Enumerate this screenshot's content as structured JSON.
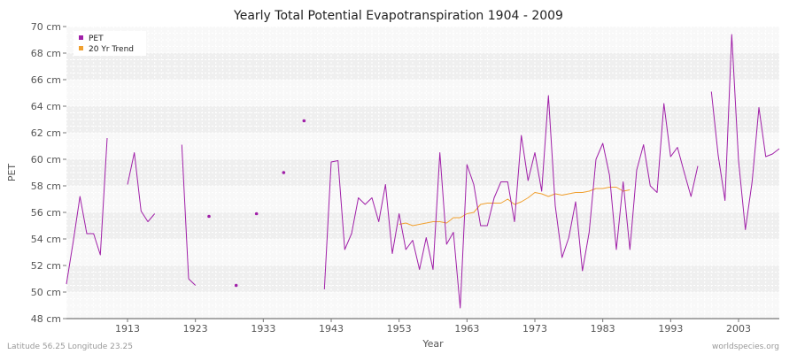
{
  "chart_data": {
    "type": "line",
    "title": "Yearly Total Potential Evapotranspiration 1904 - 2009",
    "xlabel": "Year",
    "ylabel": "PET",
    "xlim": [
      1904,
      2009
    ],
    "ylim": [
      48,
      70
    ],
    "y_unit": "cm",
    "x_ticks": [
      1913,
      1923,
      1933,
      1943,
      1953,
      1963,
      1973,
      1983,
      1993,
      2003
    ],
    "y_ticks": [
      48,
      50,
      52,
      54,
      56,
      58,
      60,
      62,
      64,
      66,
      68,
      70
    ],
    "y_tick_labels": [
      "48 cm",
      "50 cm",
      "52 cm",
      "54 cm",
      "56 cm",
      "58 cm",
      "60 cm",
      "62 cm",
      "64 cm",
      "66 cm",
      "68 cm",
      "70 cm"
    ],
    "grid": true,
    "legend_position": "top-left",
    "series": [
      {
        "name": "PET",
        "color": "#a020a8",
        "points": [
          [
            1904,
            50.6
          ],
          [
            1905,
            53.8
          ],
          [
            1906,
            57.2
          ],
          [
            1907,
            54.4
          ],
          [
            1908,
            54.4
          ],
          [
            1909,
            52.8
          ],
          [
            1910,
            61.6
          ],
          [
            1913,
            58.1
          ],
          [
            1914,
            60.5
          ],
          [
            1915,
            56.1
          ],
          [
            1916,
            55.3
          ],
          [
            1917,
            55.9
          ],
          [
            1921,
            61.1
          ],
          [
            1922,
            51.0
          ],
          [
            1923,
            50.5
          ],
          [
            1925,
            55.7
          ],
          [
            1929,
            50.5
          ],
          [
            1932,
            55.9
          ],
          [
            1936,
            59.0
          ],
          [
            1939,
            62.9
          ],
          [
            1942,
            50.2
          ],
          [
            1943,
            59.8
          ],
          [
            1944,
            59.9
          ],
          [
            1945,
            53.2
          ],
          [
            1946,
            54.4
          ],
          [
            1947,
            57.1
          ],
          [
            1948,
            56.6
          ],
          [
            1949,
            57.1
          ],
          [
            1950,
            55.3
          ],
          [
            1951,
            58.1
          ],
          [
            1952,
            52.9
          ],
          [
            1953,
            55.9
          ],
          [
            1954,
            53.2
          ],
          [
            1955,
            53.9
          ],
          [
            1956,
            51.7
          ],
          [
            1957,
            54.1
          ],
          [
            1958,
            51.7
          ],
          [
            1959,
            60.5
          ],
          [
            1960,
            53.6
          ],
          [
            1961,
            54.5
          ],
          [
            1962,
            48.8
          ],
          [
            1963,
            59.6
          ],
          [
            1964,
            58.1
          ],
          [
            1965,
            55.0
          ],
          [
            1966,
            55.0
          ],
          [
            1967,
            57.1
          ],
          [
            1968,
            58.3
          ],
          [
            1969,
            58.3
          ],
          [
            1970,
            55.3
          ],
          [
            1971,
            61.8
          ],
          [
            1972,
            58.4
          ],
          [
            1973,
            60.5
          ],
          [
            1974,
            57.6
          ],
          [
            1975,
            64.8
          ],
          [
            1976,
            56.5
          ],
          [
            1977,
            52.6
          ],
          [
            1978,
            54.1
          ],
          [
            1979,
            56.8
          ],
          [
            1980,
            51.6
          ],
          [
            1981,
            54.5
          ],
          [
            1982,
            60.0
          ],
          [
            1983,
            61.2
          ],
          [
            1984,
            58.8
          ],
          [
            1985,
            53.2
          ],
          [
            1986,
            58.3
          ],
          [
            1987,
            53.2
          ],
          [
            1988,
            59.2
          ],
          [
            1989,
            61.1
          ],
          [
            1990,
            58.0
          ],
          [
            1991,
            57.5
          ],
          [
            1992,
            64.2
          ],
          [
            1993,
            60.2
          ],
          [
            1994,
            60.9
          ],
          [
            1995,
            59.0
          ],
          [
            1996,
            57.2
          ],
          [
            1997,
            59.5
          ],
          [
            1999,
            65.1
          ],
          [
            2000,
            60.3
          ],
          [
            2001,
            56.9
          ],
          [
            2002,
            69.4
          ],
          [
            2003,
            59.9
          ],
          [
            2004,
            54.7
          ],
          [
            2005,
            58.3
          ],
          [
            2006,
            63.9
          ],
          [
            2007,
            60.2
          ],
          [
            2008,
            60.4
          ],
          [
            2009,
            60.8
          ]
        ]
      },
      {
        "name": "20 Yr Trend",
        "color": "#f0a030",
        "points": [
          [
            1953,
            55.1
          ],
          [
            1954,
            55.2
          ],
          [
            1955,
            55.0
          ],
          [
            1956,
            55.1
          ],
          [
            1957,
            55.2
          ],
          [
            1958,
            55.3
          ],
          [
            1959,
            55.3
          ],
          [
            1960,
            55.2
          ],
          [
            1961,
            55.6
          ],
          [
            1962,
            55.6
          ],
          [
            1963,
            55.9
          ],
          [
            1964,
            56.0
          ],
          [
            1965,
            56.6
          ],
          [
            1966,
            56.7
          ],
          [
            1967,
            56.7
          ],
          [
            1968,
            56.7
          ],
          [
            1969,
            57.0
          ],
          [
            1970,
            56.6
          ],
          [
            1971,
            56.8
          ],
          [
            1972,
            57.1
          ],
          [
            1973,
            57.5
          ],
          [
            1974,
            57.4
          ],
          [
            1975,
            57.2
          ],
          [
            1976,
            57.4
          ],
          [
            1977,
            57.3
          ],
          [
            1978,
            57.4
          ],
          [
            1979,
            57.5
          ],
          [
            1980,
            57.5
          ],
          [
            1981,
            57.6
          ],
          [
            1982,
            57.8
          ],
          [
            1983,
            57.8
          ],
          [
            1984,
            57.9
          ],
          [
            1985,
            57.9
          ],
          [
            1986,
            57.6
          ],
          [
            1987,
            57.7
          ]
        ]
      }
    ]
  },
  "footer": {
    "location": "Latitude 56.25 Longitude 23.25",
    "source": "worldspecies.org"
  }
}
